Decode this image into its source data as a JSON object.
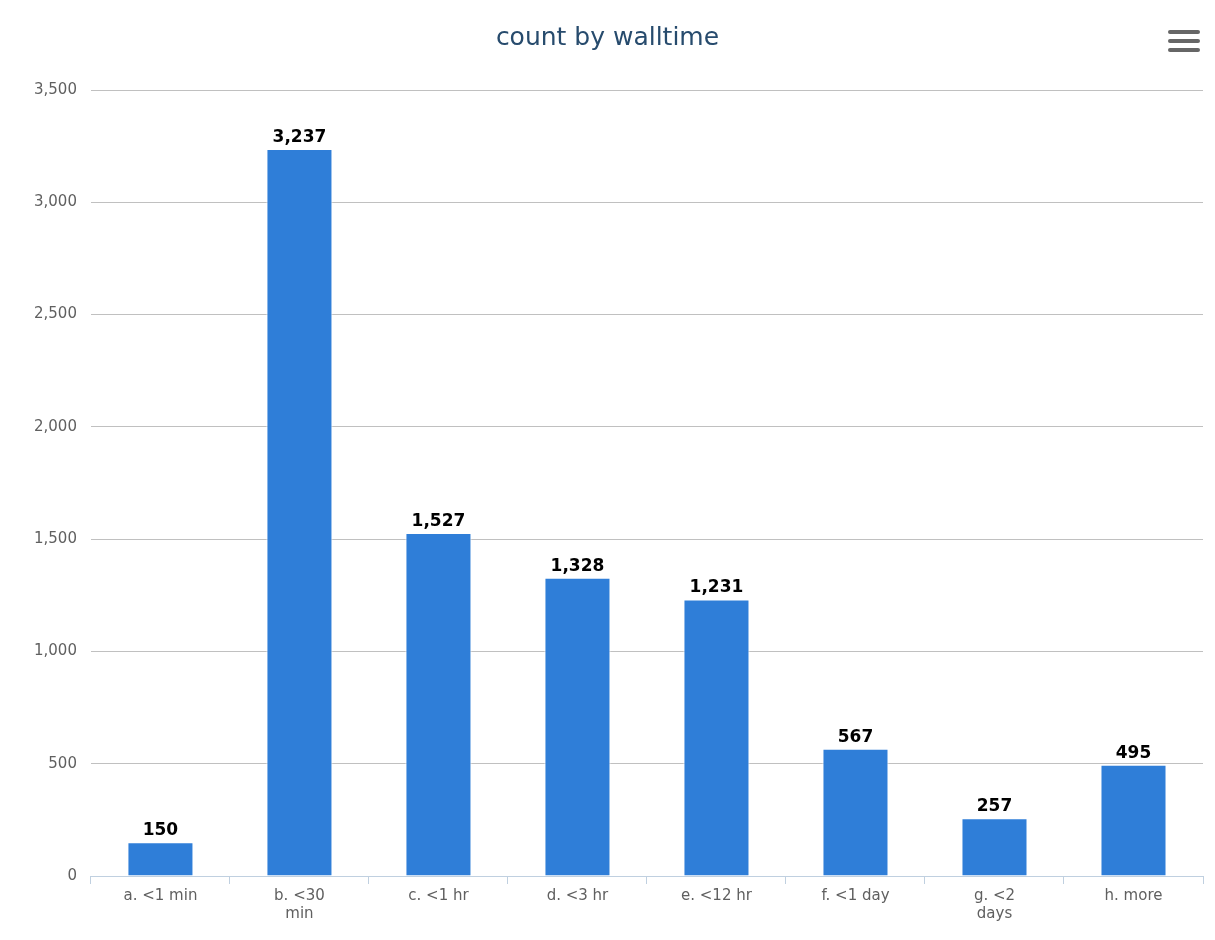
{
  "chart_data": {
    "type": "bar",
    "title": "count by walltime",
    "categories": [
      "a. <1 min",
      "b. <30 min",
      "c. <1 hr",
      "d. <3 hr",
      "e. <12 hr",
      "f. <1 day",
      "g. <2 days",
      "h. more"
    ],
    "values": [
      150,
      3237,
      1527,
      1328,
      1231,
      567,
      257,
      495
    ],
    "value_labels": [
      "150",
      "3,237",
      "1,527",
      "1,328",
      "1,231",
      "567",
      "257",
      "495"
    ],
    "color": "#2f7ed8",
    "ylim": [
      0,
      3500
    ],
    "yticks": [
      0,
      500,
      {
        "value": 1000,
        "label": "1,000"
      },
      {
        "value": 1500,
        "label": "1,500"
      },
      {
        "value": 2000,
        "label": "2,000"
      },
      {
        "value": 2500,
        "label": "2,500"
      },
      {
        "value": 3000,
        "label": "3,000"
      },
      {
        "value": 3500,
        "label": "3,500"
      }
    ],
    "grid": "y",
    "legend": false
  }
}
